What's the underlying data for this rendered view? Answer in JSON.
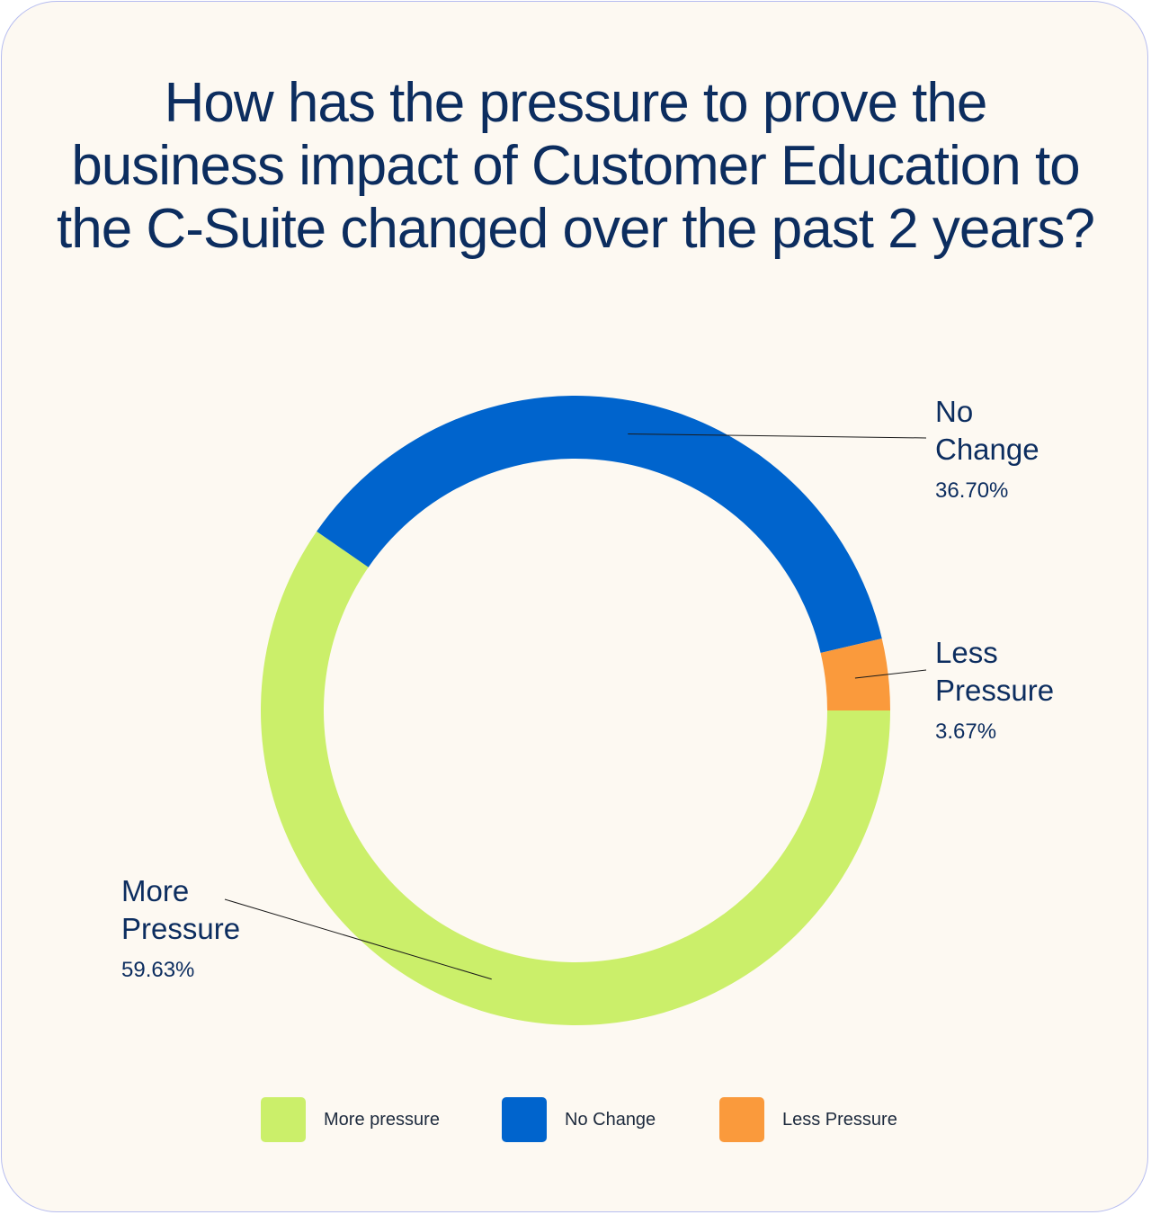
{
  "colors": {
    "more_pressure": "#cbef6a",
    "no_change": "#0064cd",
    "less_pressure": "#fa9a3c",
    "title": "#0c2d5f"
  },
  "chart_data": {
    "type": "pie",
    "variant": "donut",
    "title": "How has the pressure to prove the business impact of Customer Education to the C-Suite changed over the past 2 years?",
    "slices": [
      {
        "callout_line1": "More",
        "callout_line2": "Pressure",
        "legend": "More pressure",
        "value": 59.63,
        "value_label": "59.63%",
        "color": "#cbef6a"
      },
      {
        "callout_line1": "No",
        "callout_line2": "Change",
        "legend": "No Change",
        "value": 36.7,
        "value_label": "36.70%",
        "color": "#0064cd"
      },
      {
        "callout_line1": "Less",
        "callout_line2": "Pressure",
        "legend": "Less Pressure",
        "value": 3.67,
        "value_label": "3.67%",
        "color": "#fa9a3c"
      }
    ],
    "legend_position": "bottom"
  }
}
